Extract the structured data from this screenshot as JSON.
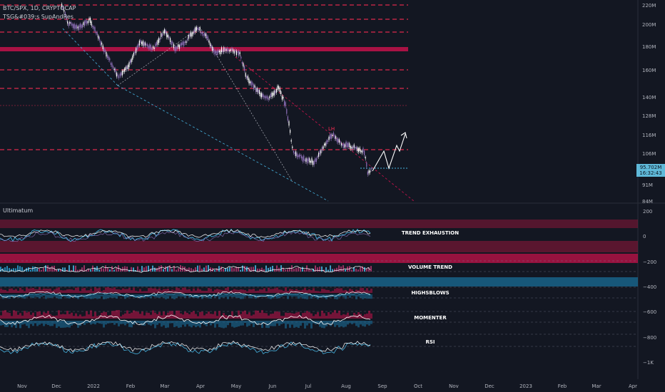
{
  "main_pane": {
    "symbol_line": "BTC/SPX, 1D, CRYPTOCAP",
    "indicator_line": "TSG&#039;s SupAndRes",
    "price_axis": [
      "220M",
      "200M",
      "180M",
      "160M",
      "140M",
      "128M",
      "116M",
      "106M",
      "91M",
      "84M"
    ],
    "last_price": "95.702M",
    "countdown": "16:32:43",
    "pattern_label": "LH",
    "colors": {
      "up": "#ffffff",
      "down": "#8e6fb8",
      "resistance": "#ff2d55",
      "trendline": "#46b3e0"
    }
  },
  "indicator_pane": {
    "name": "Ultimatum",
    "axis": [
      "200",
      "0",
      "−200",
      "−400",
      "−600",
      "−800",
      "−1K"
    ],
    "panels": [
      {
        "label": "TREND EXHAUSTION"
      },
      {
        "label": "VOLUME TREND"
      },
      {
        "label": "HIGHSBLOWS"
      },
      {
        "label": "MOMENTER"
      },
      {
        "label": "RSI"
      }
    ]
  },
  "time_axis": [
    "Nov",
    "Dec",
    "2022",
    "Feb",
    "Mar",
    "Apr",
    "May",
    "Jun",
    "Jul",
    "Aug",
    "Sep",
    "Oct",
    "Nov",
    "Dec",
    "2023",
    "Feb",
    "Mar",
    "Apr"
  ]
}
